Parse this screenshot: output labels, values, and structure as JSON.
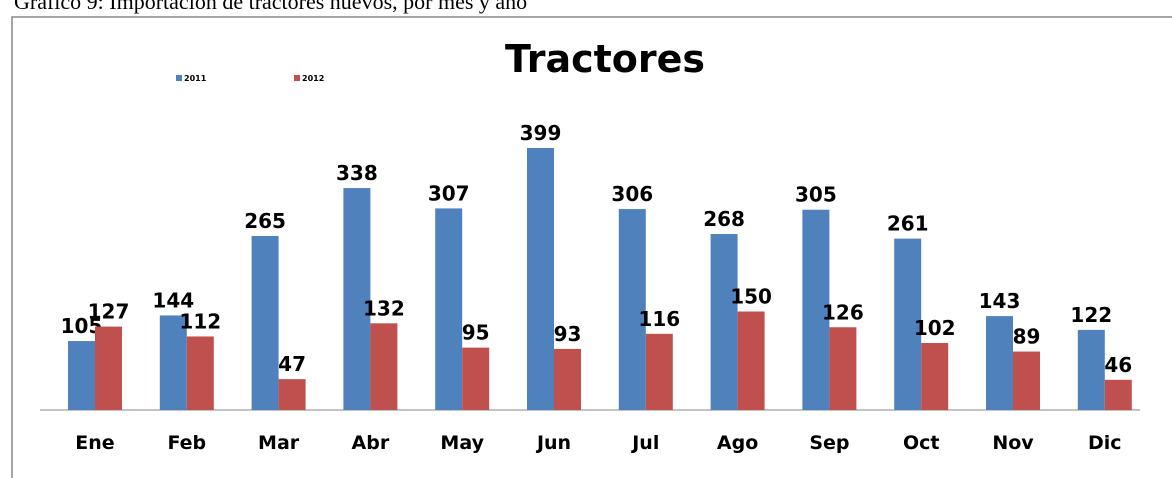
{
  "caption": "Gráfico 9: Importación de tractores nuevos, por mes y año",
  "chart_data": {
    "type": "bar",
    "title": "Tractores",
    "categories": [
      "Ene",
      "Feb",
      "Mar",
      "Abr",
      "May",
      "Jun",
      "Jul",
      "Ago",
      "Sep",
      "Oct",
      "Nov",
      "Dic"
    ],
    "series": [
      {
        "name": "2011",
        "color": "#4f81bd",
        "values": [
          105,
          144,
          265,
          338,
          307,
          399,
          306,
          268,
          305,
          261,
          143,
          122
        ]
      },
      {
        "name": "2012",
        "color": "#c0504d",
        "values": [
          127,
          112,
          47,
          132,
          95,
          93,
          116,
          150,
          126,
          102,
          89,
          46
        ]
      }
    ],
    "legend": "top-left",
    "grid": false
  }
}
